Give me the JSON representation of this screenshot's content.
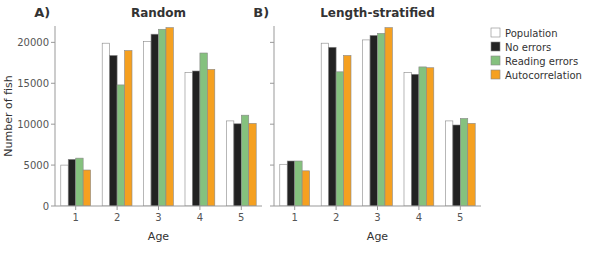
{
  "chart_data": [
    {
      "type": "bar",
      "title": "Random",
      "annotations": [
        "A)"
      ],
      "xlabel": "Age",
      "ylabel": "Number of fish",
      "categories": [
        "1",
        "2",
        "3",
        "4",
        "5"
      ],
      "series": [
        {
          "name": "Population",
          "color": "white",
          "values": [
            5000,
            19900,
            20100,
            16300,
            10400
          ]
        },
        {
          "name": "No errors",
          "color": "#222222",
          "values": [
            5700,
            18400,
            21000,
            16500,
            10050
          ]
        },
        {
          "name": "Reading errors",
          "color": "#85c17e",
          "values": [
            5850,
            14800,
            21600,
            18700,
            11100
          ]
        },
        {
          "name": "Autocorrelation",
          "color": "#f5a020",
          "values": [
            4400,
            19000,
            21800,
            16700,
            10100
          ]
        }
      ],
      "ylim": [
        0,
        22000
      ],
      "yticks": [
        0,
        5000,
        10000,
        15000,
        20000
      ],
      "grid": false
    },
    {
      "type": "bar",
      "title": "Length-stratified",
      "annotations": [
        "B)"
      ],
      "xlabel": "Age",
      "categories": [
        "1",
        "2",
        "3",
        "4",
        "5"
      ],
      "series": [
        {
          "name": "Population",
          "color": "white",
          "values": [
            5100,
            19900,
            20300,
            16300,
            10400
          ]
        },
        {
          "name": "No errors",
          "color": "#222222",
          "values": [
            5500,
            19400,
            20850,
            16100,
            9900
          ]
        },
        {
          "name": "Reading errors",
          "color": "#85c17e",
          "values": [
            5500,
            16400,
            21100,
            17000,
            10700
          ]
        },
        {
          "name": "Autocorrelation",
          "color": "#f5a020",
          "values": [
            4300,
            18400,
            21800,
            16900,
            10100
          ]
        }
      ],
      "ylim": [
        0,
        22000
      ],
      "yticks": [
        0,
        5000,
        10000,
        15000,
        20000
      ],
      "grid": false,
      "tick_labels": "x",
      "legend": "upper right"
    }
  ]
}
